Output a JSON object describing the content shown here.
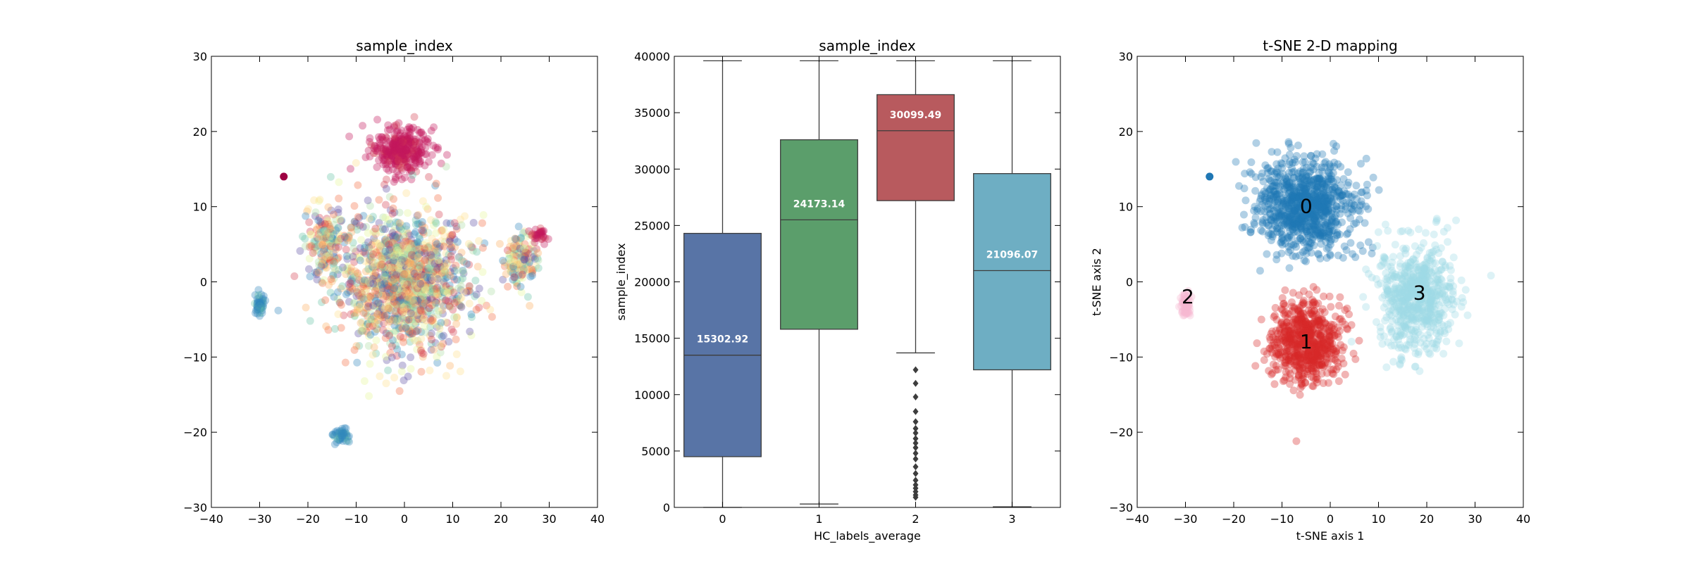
{
  "chart_data": [
    {
      "type": "scatter",
      "title": "sample_index",
      "xlabel": "",
      "ylabel": "",
      "xlim": [
        -40,
        40
      ],
      "ylim": [
        -30,
        30
      ],
      "xticks": [
        "−40",
        "−30",
        "−20",
        "−10",
        "0",
        "10",
        "20",
        "30",
        "40"
      ],
      "yticks": [
        "−30",
        "−20",
        "−10",
        "0",
        "10",
        "20",
        "30"
      ],
      "colormap": "Spectral (colored by sample_index)",
      "clusters": [
        {
          "color_class": "crimson",
          "center": [
            -1,
            17.5
          ],
          "spread": [
            6,
            3.2
          ],
          "count": 320
        },
        {
          "color_class": "mixed",
          "center": [
            0,
            0
          ],
          "spread": [
            13,
            9
          ],
          "count": 1400
        },
        {
          "color_class": "mixed",
          "center": [
            -16,
            5
          ],
          "spread": [
            4,
            5
          ],
          "count": 180
        },
        {
          "color_class": "mixed",
          "center": [
            24,
            3
          ],
          "spread": [
            3.5,
            4
          ],
          "count": 140
        },
        {
          "color_class": "crimson",
          "center": [
            28,
            6.3
          ],
          "spread": [
            1.5,
            1
          ],
          "count": 30
        },
        {
          "color_class": "blue",
          "center": [
            -30,
            -3
          ],
          "spread": [
            1,
            1.5
          ],
          "count": 50
        },
        {
          "color_class": "blue",
          "center": [
            -13,
            -20.5
          ],
          "spread": [
            1.6,
            1.2
          ],
          "count": 45
        }
      ],
      "outlier": {
        "x": -25,
        "y": 14,
        "color": "#9e0142"
      }
    },
    {
      "type": "box",
      "title": "sample_index",
      "xlabel": "HC_labels_average",
      "ylabel": "sample_index",
      "ylim": [
        0,
        40000
      ],
      "yticks": [
        "0",
        "5000",
        "10000",
        "15000",
        "20000",
        "25000",
        "30000",
        "35000",
        "40000"
      ],
      "categories": [
        "0",
        "1",
        "2",
        "3"
      ],
      "boxes": [
        {
          "category": "0",
          "whisker_low": 0,
          "q1": 4500,
          "median": 13500,
          "q3": 24300,
          "whisker_high": 39600,
          "mean_label": "15302.92",
          "color": "#5874a6"
        },
        {
          "category": "1",
          "whisker_low": 300,
          "q1": 15800,
          "median": 25500,
          "q3": 32600,
          "whisker_high": 39600,
          "mean_label": "24173.14",
          "color": "#5b9e6b"
        },
        {
          "category": "2",
          "whisker_low": 13700,
          "q1": 27200,
          "median": 33400,
          "q3": 36600,
          "whisker_high": 39600,
          "mean_label": "30099.49",
          "color": "#b85a5e"
        },
        {
          "category": "3",
          "whisker_low": 50,
          "q1": 12200,
          "median": 21000,
          "q3": 29600,
          "whisker_high": 39600,
          "mean_label": "21096.07",
          "color": "#6eaec3"
        }
      ],
      "outliers_category_2": [
        12200,
        11000,
        9800,
        8500,
        7600,
        7000,
        6600,
        6100,
        5700,
        5300,
        4800,
        4300,
        3600,
        3000,
        2400,
        2000,
        1700,
        1400,
        1100,
        900
      ]
    },
    {
      "type": "scatter",
      "title": "t-SNE 2-D mapping",
      "xlabel": "t-SNE axis 1",
      "ylabel": "t-SNE axis 2",
      "xlim": [
        -40,
        40
      ],
      "ylim": [
        -30,
        30
      ],
      "xticks": [
        "−40",
        "−30",
        "−20",
        "−10",
        "0",
        "10",
        "20",
        "30",
        "40"
      ],
      "yticks": [
        "−30",
        "−20",
        "−10",
        "0",
        "10",
        "20",
        "30"
      ],
      "clusters": [
        {
          "label": "0",
          "color": "#1f77b4",
          "center": [
            -5,
            10
          ],
          "spread": [
            10,
            6
          ],
          "count": 900,
          "label_pos": [
            -5,
            10
          ]
        },
        {
          "label": "1",
          "color": "#d62728",
          "center": [
            -5,
            -8
          ],
          "spread": [
            7,
            5.5
          ],
          "count": 650,
          "label_pos": [
            -5,
            -8
          ]
        },
        {
          "label": "2",
          "color": "#f7b6d2",
          "center": [
            -30,
            -3
          ],
          "spread": [
            1,
            1.5
          ],
          "count": 60,
          "label_pos": [
            -29.5,
            -2
          ]
        },
        {
          "label": "3",
          "color": "#9edae5",
          "center": [
            18,
            -2
          ],
          "spread": [
            8,
            7
          ],
          "count": 650,
          "label_pos": [
            18.5,
            -1.5
          ]
        }
      ],
      "outlier": {
        "x": -25,
        "y": 14,
        "color": "#1f77b4"
      }
    }
  ]
}
